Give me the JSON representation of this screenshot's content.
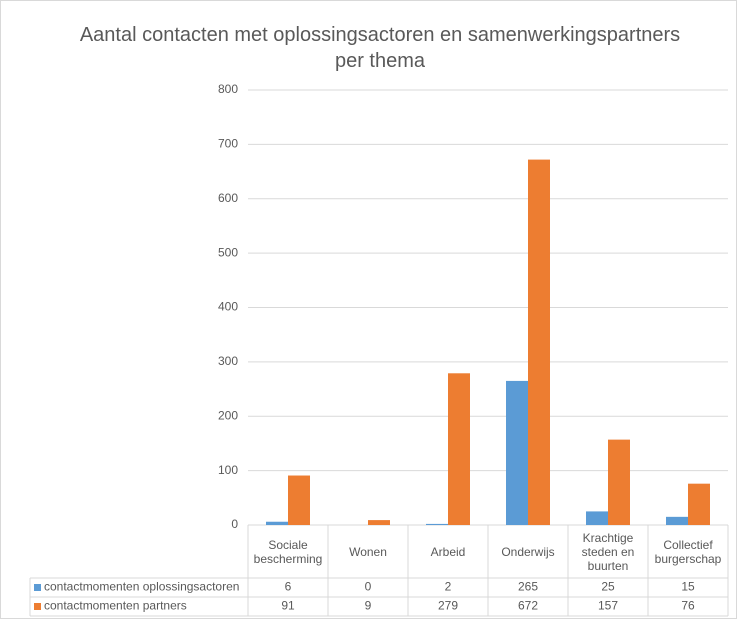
{
  "chart_data": {
    "type": "bar",
    "title": "Aantal contacten met oplossingsactoren en samenwerkingspartners per thema",
    "categories": [
      "Sociale bescherming",
      "Wonen",
      "Arbeid",
      "Onderwijs",
      "Krachtige steden en buurten",
      "Collectief burgerschap"
    ],
    "series": [
      {
        "name": "contactmomenten oplossingsactoren",
        "color": "#5b9bd5",
        "values": [
          6,
          0,
          2,
          265,
          25,
          15
        ]
      },
      {
        "name": "contactmomenten partners",
        "color": "#ed7d31",
        "values": [
          91,
          9,
          279,
          672,
          157,
          76
        ]
      }
    ],
    "ylim": [
      0,
      800
    ],
    "yticks": [
      0,
      100,
      200,
      300,
      400,
      500,
      600,
      700,
      800
    ],
    "grid": true
  }
}
